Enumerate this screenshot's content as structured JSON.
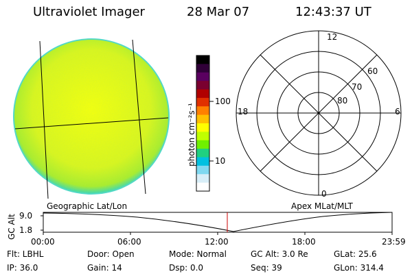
{
  "header": {
    "title": "Ultraviolet Imager",
    "date": "28 Mar 07",
    "time": "12:43:37 UT"
  },
  "geo_panel": {
    "caption": "Geographic Lat/Lon"
  },
  "colorbar": {
    "unit_label": "photon cm⁻²s⁻¹",
    "ticks": [
      "100",
      "10"
    ],
    "colors": [
      "#000000",
      "#300038",
      "#5a0060",
      "#7a0030",
      "#b00000",
      "#e03000",
      "#ff8000",
      "#ffc000",
      "#ffff00",
      "#c0ff00",
      "#70f000",
      "#20d080",
      "#00c0e0",
      "#80d8f0",
      "#d8eef8",
      "#ffffff"
    ]
  },
  "polar_panel": {
    "caption": "Apex MLat/MLT",
    "mlt_labels": {
      "top": "12",
      "right": "6",
      "bottom": "0",
      "left": "18"
    },
    "mlat_labels": [
      "60",
      "70",
      "80"
    ]
  },
  "altitude_plot": {
    "axis_label": "GC Alt",
    "y_ticks": [
      "9.0",
      "1.8"
    ],
    "x_ticks": [
      "00:00",
      "06:00",
      "12:00",
      "18:00",
      "23:59"
    ],
    "current_time_marker": "12:43:37",
    "marker_color": "#cc0000"
  },
  "info": {
    "filter": "Flt: LBHL",
    "door": "Door: Open",
    "mode": "Mode: Normal",
    "gc_alt": "GC Alt: 3.0 Re",
    "glat": "GLat:  25.6",
    "ip": "IP: 36.0",
    "gain": "Gain: 14",
    "dsp": "Dsp:     0.0",
    "seq": "Seq: 39",
    "glon": "GLon: 314.4"
  }
}
